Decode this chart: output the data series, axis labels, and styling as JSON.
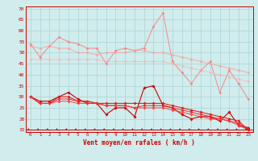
{
  "bg_color": "#d0ecec",
  "grid_color": "#aad4d4",
  "xlabel": "Vent moyen/en rafales ( km/h )",
  "x": [
    0,
    1,
    2,
    3,
    4,
    5,
    6,
    7,
    8,
    9,
    10,
    11,
    12,
    13,
    14,
    15,
    16,
    17,
    18,
    19,
    20,
    21,
    22,
    23
  ],
  "ylim": [
    14,
    71
  ],
  "yticks": [
    15,
    20,
    25,
    30,
    35,
    40,
    45,
    50,
    55,
    60,
    65,
    70
  ],
  "lines": [
    {
      "color": "#ff7777",
      "alpha": 0.75,
      "lw": 0.8,
      "ms": 2.0,
      "values": [
        54,
        48,
        53,
        57,
        55,
        54,
        52,
        52,
        45,
        51,
        52,
        51,
        52,
        62,
        68,
        46,
        41,
        36,
        42,
        46,
        32,
        42,
        36,
        29
      ]
    },
    {
      "color": "#ff9999",
      "alpha": 0.65,
      "lw": 0.8,
      "ms": 2.0,
      "values": [
        53,
        52,
        53,
        52,
        52,
        50,
        50,
        49,
        50,
        50,
        50,
        51,
        51,
        50,
        50,
        49,
        48,
        47,
        46,
        45,
        44,
        43,
        42,
        41
      ]
    },
    {
      "color": "#ffaaaa",
      "alpha": 0.55,
      "lw": 0.8,
      "ms": 2.0,
      "values": [
        47,
        47,
        47,
        47,
        47,
        47,
        47,
        47,
        46,
        46,
        46,
        46,
        46,
        46,
        46,
        45,
        44,
        43,
        42,
        41,
        40,
        39,
        38,
        37
      ]
    },
    {
      "color": "#cc0000",
      "alpha": 1.0,
      "lw": 0.8,
      "ms": 2.0,
      "values": [
        30,
        28,
        28,
        30,
        32,
        29,
        27,
        27,
        22,
        25,
        25,
        21,
        34,
        35,
        26,
        25,
        22,
        20,
        21,
        21,
        19,
        23,
        17,
        16
      ]
    },
    {
      "color": "#dd1111",
      "alpha": 0.9,
      "lw": 0.8,
      "ms": 2.0,
      "values": [
        30,
        27,
        27,
        30,
        30,
        28,
        28,
        27,
        27,
        27,
        27,
        27,
        27,
        27,
        27,
        26,
        25,
        24,
        23,
        22,
        21,
        20,
        19,
        15
      ]
    },
    {
      "color": "#ee2222",
      "alpha": 0.85,
      "lw": 0.8,
      "ms": 2.0,
      "values": [
        30,
        27,
        27,
        29,
        29,
        28,
        28,
        27,
        26,
        26,
        26,
        25,
        26,
        26,
        26,
        25,
        24,
        23,
        22,
        21,
        20,
        19,
        18,
        15
      ]
    },
    {
      "color": "#ff3333",
      "alpha": 0.8,
      "lw": 0.8,
      "ms": 2.0,
      "values": [
        30,
        27,
        27,
        28,
        28,
        27,
        27,
        27,
        26,
        26,
        26,
        25,
        25,
        25,
        25,
        24,
        23,
        22,
        21,
        20,
        20,
        19,
        17,
        15
      ]
    }
  ],
  "arrow_color": "#cc0000",
  "spine_color": "#cc0000"
}
